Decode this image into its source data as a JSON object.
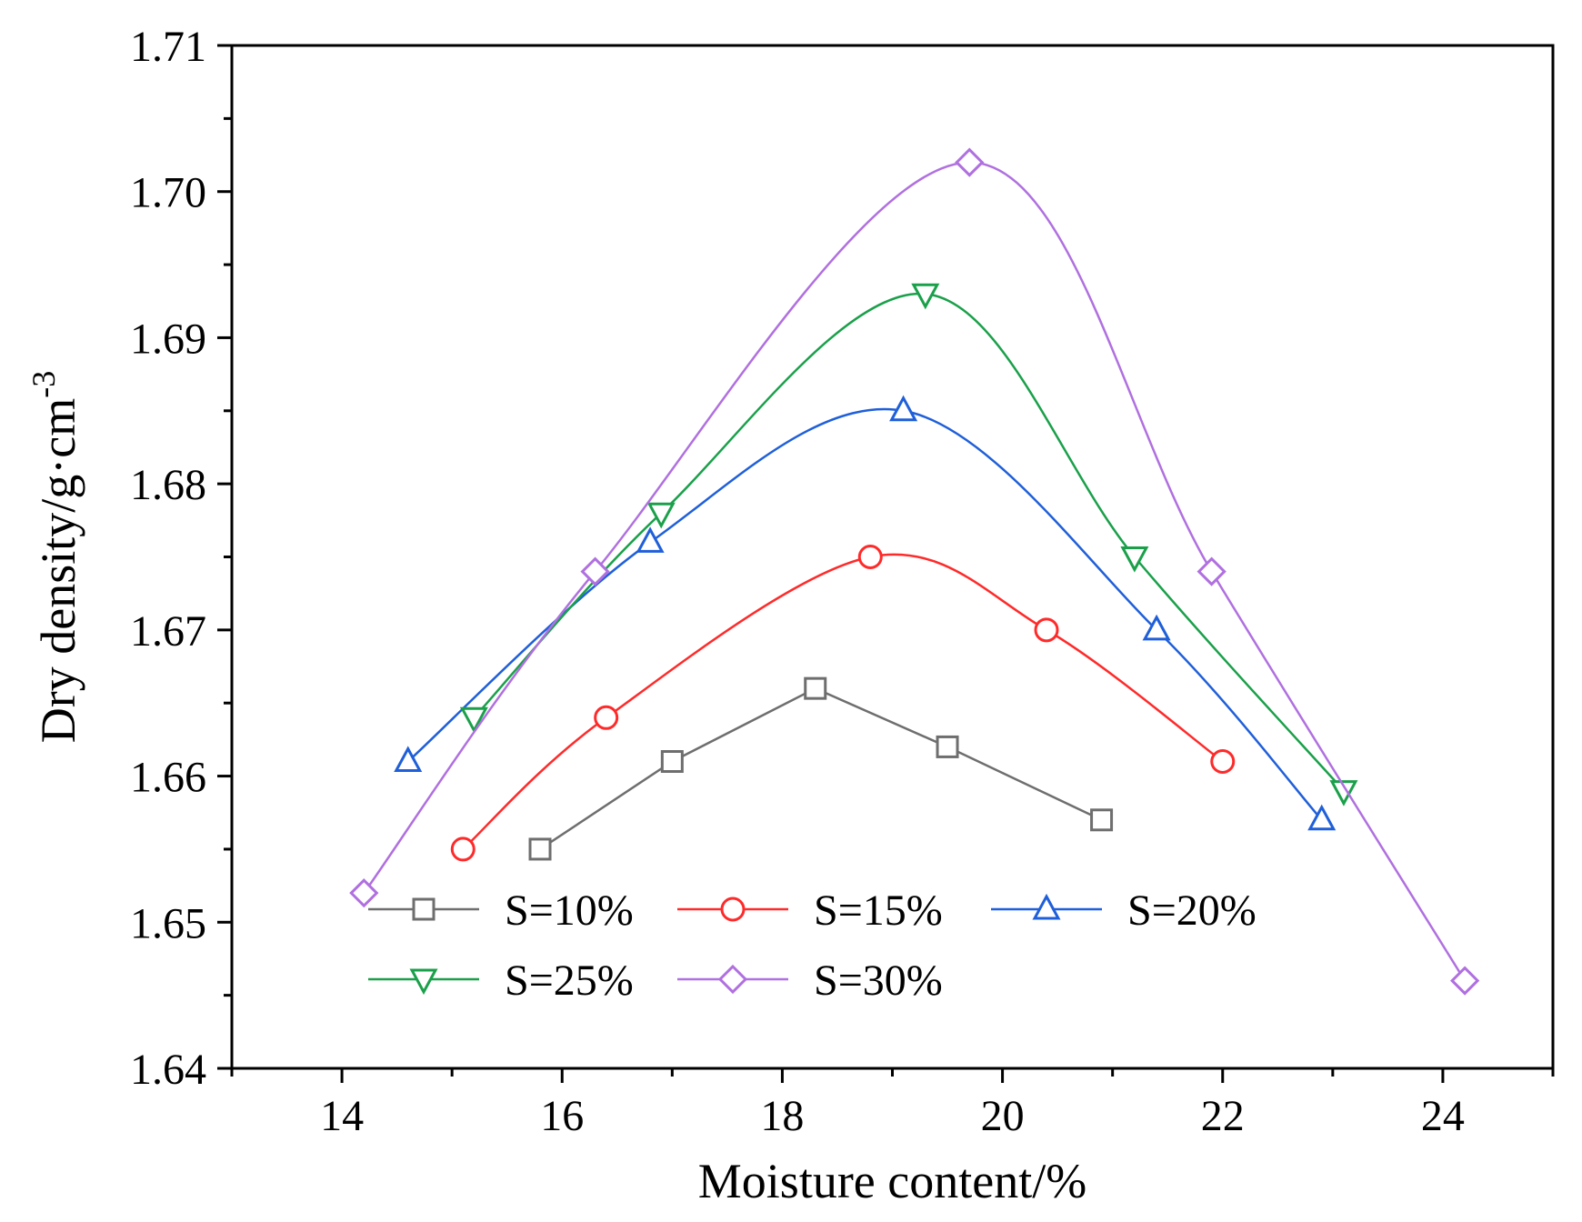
{
  "chart_data": {
    "type": "line",
    "title": "",
    "xlabel": "Moisture content/%",
    "ylabel": "Dry density/g·cm",
    "ylabel_sup": "-3",
    "xlim": [
      13,
      25
    ],
    "ylim": [
      1.64,
      1.71
    ],
    "xticks": [
      14,
      16,
      18,
      20,
      22,
      24
    ],
    "xtick_labels": [
      "14",
      "16",
      "18",
      "20",
      "22",
      "24"
    ],
    "yticks": [
      1.64,
      1.65,
      1.66,
      1.67,
      1.68,
      1.69,
      1.7,
      1.71
    ],
    "ytick_labels": [
      "1.64",
      "1.65",
      "1.66",
      "1.67",
      "1.68",
      "1.69",
      "1.70",
      "1.71"
    ],
    "grid": false,
    "legend_position": "bottom-left",
    "series": [
      {
        "name": "S=10%",
        "marker": "square",
        "color": "#6e6e6e",
        "smooth": false,
        "x": [
          15.8,
          17.0,
          18.3,
          19.5,
          20.9
        ],
        "y": [
          1.655,
          1.661,
          1.666,
          1.662,
          1.657
        ]
      },
      {
        "name": "S=15%",
        "marker": "circle",
        "color": "#ff2a2a",
        "smooth": true,
        "x": [
          15.1,
          16.4,
          18.8,
          20.4,
          22.0
        ],
        "y": [
          1.655,
          1.664,
          1.675,
          1.67,
          1.661
        ]
      },
      {
        "name": "S=20%",
        "marker": "triangle-up",
        "color": "#1f5fd9",
        "smooth": true,
        "x": [
          14.6,
          16.8,
          19.1,
          21.4,
          22.9
        ],
        "y": [
          1.661,
          1.676,
          1.685,
          1.67,
          1.657
        ]
      },
      {
        "name": "S=25%",
        "marker": "triangle-down",
        "color": "#1aa04a",
        "smooth": true,
        "x": [
          15.2,
          16.9,
          19.3,
          21.2,
          23.1
        ],
        "y": [
          1.664,
          1.678,
          1.693,
          1.675,
          1.659
        ]
      },
      {
        "name": "S=30%",
        "marker": "diamond",
        "color": "#b070e0",
        "smooth": true,
        "x": [
          14.2,
          16.3,
          19.7,
          21.9,
          24.2
        ],
        "y": [
          1.652,
          1.674,
          1.702,
          1.674,
          1.646
        ]
      }
    ]
  }
}
